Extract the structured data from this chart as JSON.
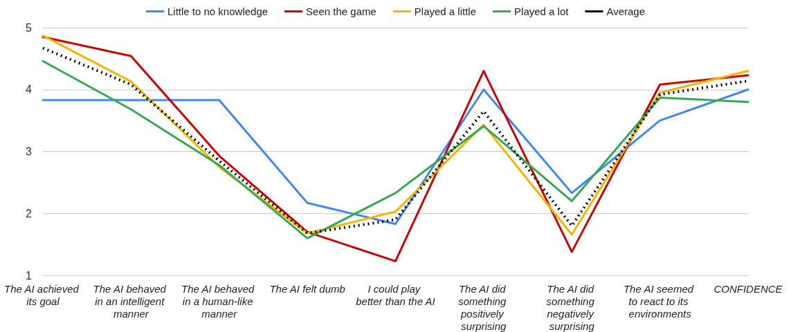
{
  "chart_data": {
    "type": "line",
    "categories": [
      "The AI achieved its goal",
      "The AI behaved in an intelligent manner",
      "The AI behaved in a human-like manner",
      "The AI felt dumb",
      "I could play better than the AI",
      "The AI did something positively surprising",
      "The AI did something negatively surprising",
      "The AI seemed to react to its environments",
      "CONFIDENCE"
    ],
    "series": [
      {
        "name": "Little to no knowledge",
        "color": "#4285f4",
        "values": [
          3.83,
          3.83,
          3.83,
          2.17,
          1.83,
          4.0,
          2.33,
          3.5,
          4.0
        ]
      },
      {
        "name": "Seen the game",
        "color": "#cc0000",
        "values": [
          4.85,
          4.54,
          2.93,
          1.7,
          1.23,
          4.3,
          1.38,
          4.08,
          4.23
        ]
      },
      {
        "name": "Played a little",
        "color": "#f4b400",
        "values": [
          4.87,
          4.13,
          2.75,
          1.68,
          2.03,
          3.43,
          1.66,
          3.95,
          4.3
        ]
      },
      {
        "name": "Played a lot",
        "color": "#34a853",
        "values": [
          4.46,
          3.68,
          2.78,
          1.6,
          2.33,
          3.41,
          2.2,
          3.87,
          3.8
        ]
      },
      {
        "name": "Average",
        "color": "#000000",
        "line_style": "dotted",
        "values": [
          4.67,
          4.08,
          2.85,
          1.68,
          1.9,
          3.65,
          1.8,
          3.92,
          4.14
        ]
      }
    ],
    "ylim": [
      1,
      5
    ],
    "yticks": [
      1,
      2,
      3,
      4,
      5
    ],
    "grid": "y",
    "legend": "top",
    "marker": "none",
    "line_style": "solid"
  }
}
